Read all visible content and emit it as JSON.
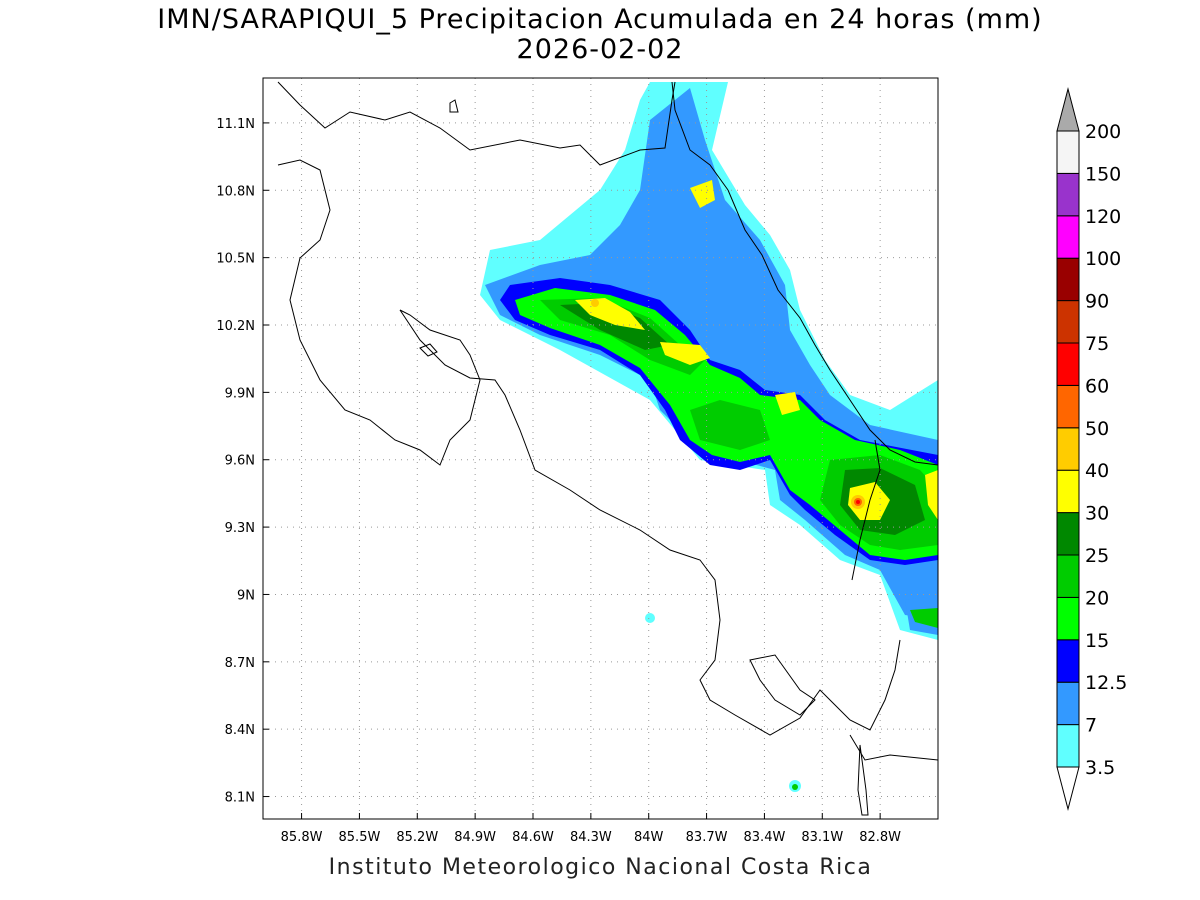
{
  "header": {
    "title": "IMN/SARAPIQUI_5 Precipitacion Acumulada en 24 horas (mm)",
    "date": "2026-02-02"
  },
  "footer": {
    "credit": "Instituto Meteorologico Nacional Costa Rica"
  },
  "map": {
    "lon_range": [
      -86.0,
      -82.5
    ],
    "lat_range": [
      8.0,
      11.3
    ],
    "lon_ticks": [
      "85.8W",
      "85.5W",
      "85.2W",
      "84.9W",
      "84.6W",
      "84.3W",
      "84W",
      "83.7W",
      "83.4W",
      "83.1W",
      "82.8W"
    ],
    "lat_ticks": [
      "11.1N",
      "10.8N",
      "10.5N",
      "10.2N",
      "9.9N",
      "9.6N",
      "9.3N",
      "9N",
      "8.7N",
      "8.4N",
      "8.1N"
    ],
    "grid": true
  },
  "legend": {
    "placement": "right",
    "levels": [
      "3.5",
      "7",
      "12.5",
      "15",
      "20",
      "25",
      "30",
      "40",
      "50",
      "60",
      "75",
      "90",
      "100",
      "120",
      "150",
      "200"
    ],
    "colors": [
      "#60ffff",
      "#3399ff",
      "#0000ff",
      "#00ff00",
      "#00cc00",
      "#008800",
      "#ffff00",
      "#ffcc00",
      "#ff6600",
      "#ff0000",
      "#cc3300",
      "#990000",
      "#ff00ff",
      "#9933cc",
      "#f5f5f5",
      "#aaaaaa"
    ]
  }
}
